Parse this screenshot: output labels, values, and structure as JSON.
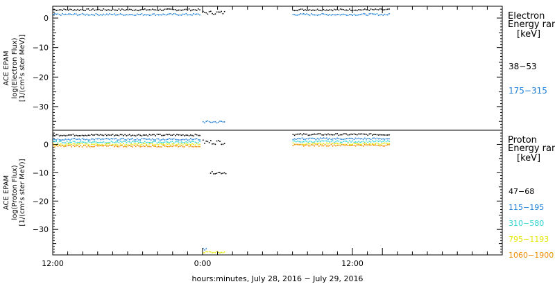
{
  "chart_data": [
    {
      "type": "scatter",
      "panel": "electron",
      "ylabel": [
        "ACE EPAM",
        "log(Electron Flux)",
        "[1/(cm²s ster MeV)]"
      ],
      "legend_title": [
        "Electron",
        "Energy ran",
        "[keV]"
      ],
      "ylim": [
        -38,
        4
      ],
      "yticks": [
        0,
        -10,
        -20,
        -30
      ],
      "ytick_labels": [
        "0",
        "−10",
        "−20",
        "−30"
      ],
      "series": [
        {
          "name": "38−53",
          "color": "#000000",
          "segments": [
            {
              "x": [
                0,
                9.8
              ],
              "y": 2.8,
              "jitter": 0.3
            },
            {
              "x": [
                10.0,
                11.5
              ],
              "y": 1.8,
              "jitter": 0.6
            },
            {
              "x": [
                16.0,
                22.5
              ],
              "y": 2.8,
              "jitter": 0.3
            }
          ]
        },
        {
          "name": "175−315",
          "color": "#1e7fd8",
          "segments": [
            {
              "x": [
                0,
                9.8
              ],
              "y": 1.2,
              "jitter": 0.3
            },
            {
              "x": [
                10.0,
                11.5
              ],
              "y": -35.2,
              "jitter": 0.4
            },
            {
              "x": [
                16.0,
                22.5
              ],
              "y": 1.2,
              "jitter": 0.3
            }
          ]
        }
      ]
    },
    {
      "type": "scatter",
      "panel": "proton",
      "ylabel": [
        "ACE EPAM",
        "log(Proton Flux)",
        "[1/(cm²s ster MeV)]"
      ],
      "legend_title": [
        "Proton",
        "Energy ran",
        "[keV]"
      ],
      "ylim": [
        -39,
        5
      ],
      "yticks": [
        0,
        -10,
        -20,
        -30
      ],
      "ytick_labels": [
        "0",
        "−10",
        "−20",
        "−30"
      ],
      "series": [
        {
          "name": "47−68",
          "color": "#000000",
          "segments": [
            {
              "x": [
                0,
                9.8
              ],
              "y": 3.3,
              "jitter": 0.3
            },
            {
              "x": [
                10.0,
                11.5
              ],
              "y": 0.8,
              "jitter": 0.8
            },
            {
              "x": [
                10.5,
                11.6
              ],
              "y": -10,
              "jitter": 0.4
            },
            {
              "x": [
                16.0,
                22.5
              ],
              "y": 3.5,
              "jitter": 0.3
            }
          ]
        },
        {
          "name": "115−195",
          "color": "#1e7fd8",
          "segments": [
            {
              "x": [
                0,
                9.8
              ],
              "y": 1.8,
              "jitter": 0.3
            },
            {
              "x": [
                10.0,
                10.3
              ],
              "y": -37,
              "jitter": 0.3
            },
            {
              "x": [
                16.0,
                22.5
              ],
              "y": 2.0,
              "jitter": 0.3
            }
          ]
        },
        {
          "name": "310−580",
          "color": "#2bd3d3",
          "segments": [
            {
              "x": [
                0,
                9.8
              ],
              "y": 0.8,
              "jitter": 0.3
            },
            {
              "x": [
                16.0,
                22.5
              ],
              "y": 1.0,
              "jitter": 0.3
            }
          ]
        },
        {
          "name": "795−1193",
          "color": "#e6e600",
          "segments": [
            {
              "x": [
                0,
                9.8
              ],
              "y": 0.0,
              "jitter": 0.3
            },
            {
              "x": [
                10.0,
                11.5
              ],
              "y": -38,
              "jitter": 0.3
            },
            {
              "x": [
                16.0,
                22.5
              ],
              "y": 0.2,
              "jitter": 0.3
            }
          ]
        },
        {
          "name": "1060−1900",
          "color": "#f08a00",
          "segments": [
            {
              "x": [
                0,
                9.8
              ],
              "y": -0.6,
              "jitter": 0.3
            },
            {
              "x": [
                16.0,
                22.5
              ],
              "y": -0.3,
              "jitter": 0.3
            }
          ]
        }
      ]
    }
  ],
  "x_axis": {
    "xlim": [
      0,
      30
    ],
    "tick_labels": [
      {
        "x": 0,
        "label": "12:00"
      },
      {
        "x": 10,
        "label": "0:00"
      },
      {
        "x": 20,
        "label": "12:00"
      }
    ],
    "xlabel": "hours:minutes, July 28, 2016 − July 29, 2016"
  }
}
